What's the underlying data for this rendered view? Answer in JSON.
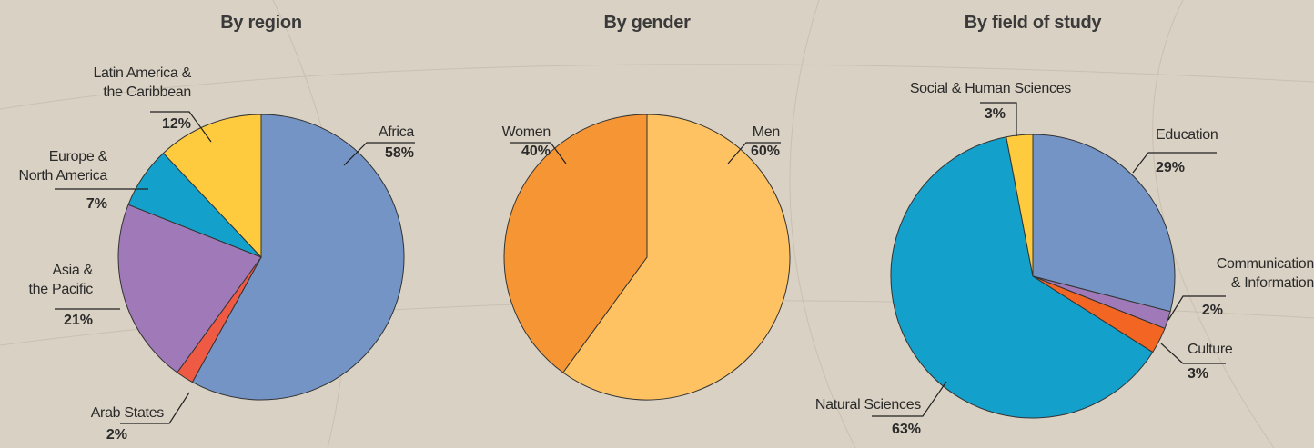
{
  "chart_data": [
    {
      "type": "pie",
      "title": "By region",
      "categories": [
        "Africa",
        "Arab States",
        "Asia &\nthe Pacific",
        "Europe &\nNorth America",
        "Latin America &\nthe Caribbean"
      ],
      "values": [
        58,
        2,
        21,
        7,
        12
      ],
      "value_labels": [
        "58%",
        "2%",
        "21%",
        "7%",
        "12%"
      ],
      "colors": [
        "#7394c5",
        "#ef5a45",
        "#a07ab8",
        "#13a0cb",
        "#ffcb3e"
      ]
    },
    {
      "type": "pie",
      "title": "By gender",
      "categories": [
        "Men",
        "Women"
      ],
      "values": [
        60,
        40
      ],
      "value_labels": [
        "60%",
        "40%"
      ],
      "colors": [
        "#fec262",
        "#f69533"
      ]
    },
    {
      "type": "pie",
      "title": "By field of study",
      "categories": [
        "Education",
        "Communication\n& Information",
        "Culture",
        "Natural Sciences",
        "Social & Human Sciences"
      ],
      "values": [
        29,
        2,
        3,
        63,
        3
      ],
      "value_labels": [
        "29%",
        "2%",
        "3%",
        "63%",
        "3%"
      ],
      "colors": [
        "#7394c5",
        "#a07ab8",
        "#f26522",
        "#13a0cb",
        "#ffcb3e"
      ]
    }
  ]
}
